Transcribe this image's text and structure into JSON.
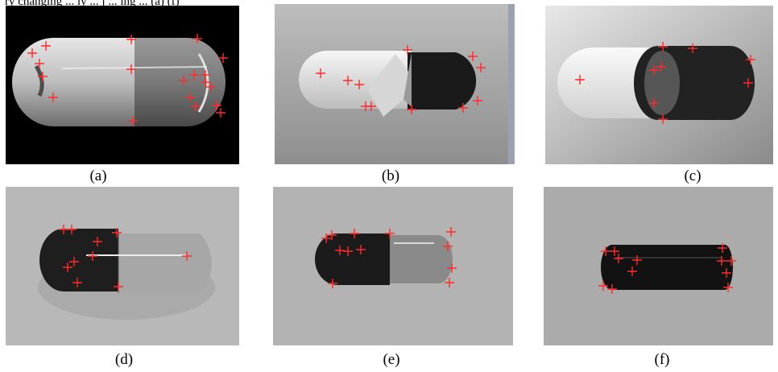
{
  "figure": {
    "caption_fragment": "ry changing ... ly ... j ... ing ... (a) (f)",
    "panels": [
      {
        "id": "a",
        "label": "(a)",
        "background": "black"
      },
      {
        "id": "b",
        "label": "(b)",
        "background": "gray-gradient"
      },
      {
        "id": "c",
        "label": "(c)",
        "background": "light-gray-gradient"
      },
      {
        "id": "d",
        "label": "(d)",
        "background": "gray"
      },
      {
        "id": "e",
        "label": "(e)",
        "background": "gray"
      },
      {
        "id": "f",
        "label": "(f)",
        "background": "gray"
      }
    ],
    "marker_color": "#ff2a2a",
    "marker_symbol": "plus"
  }
}
